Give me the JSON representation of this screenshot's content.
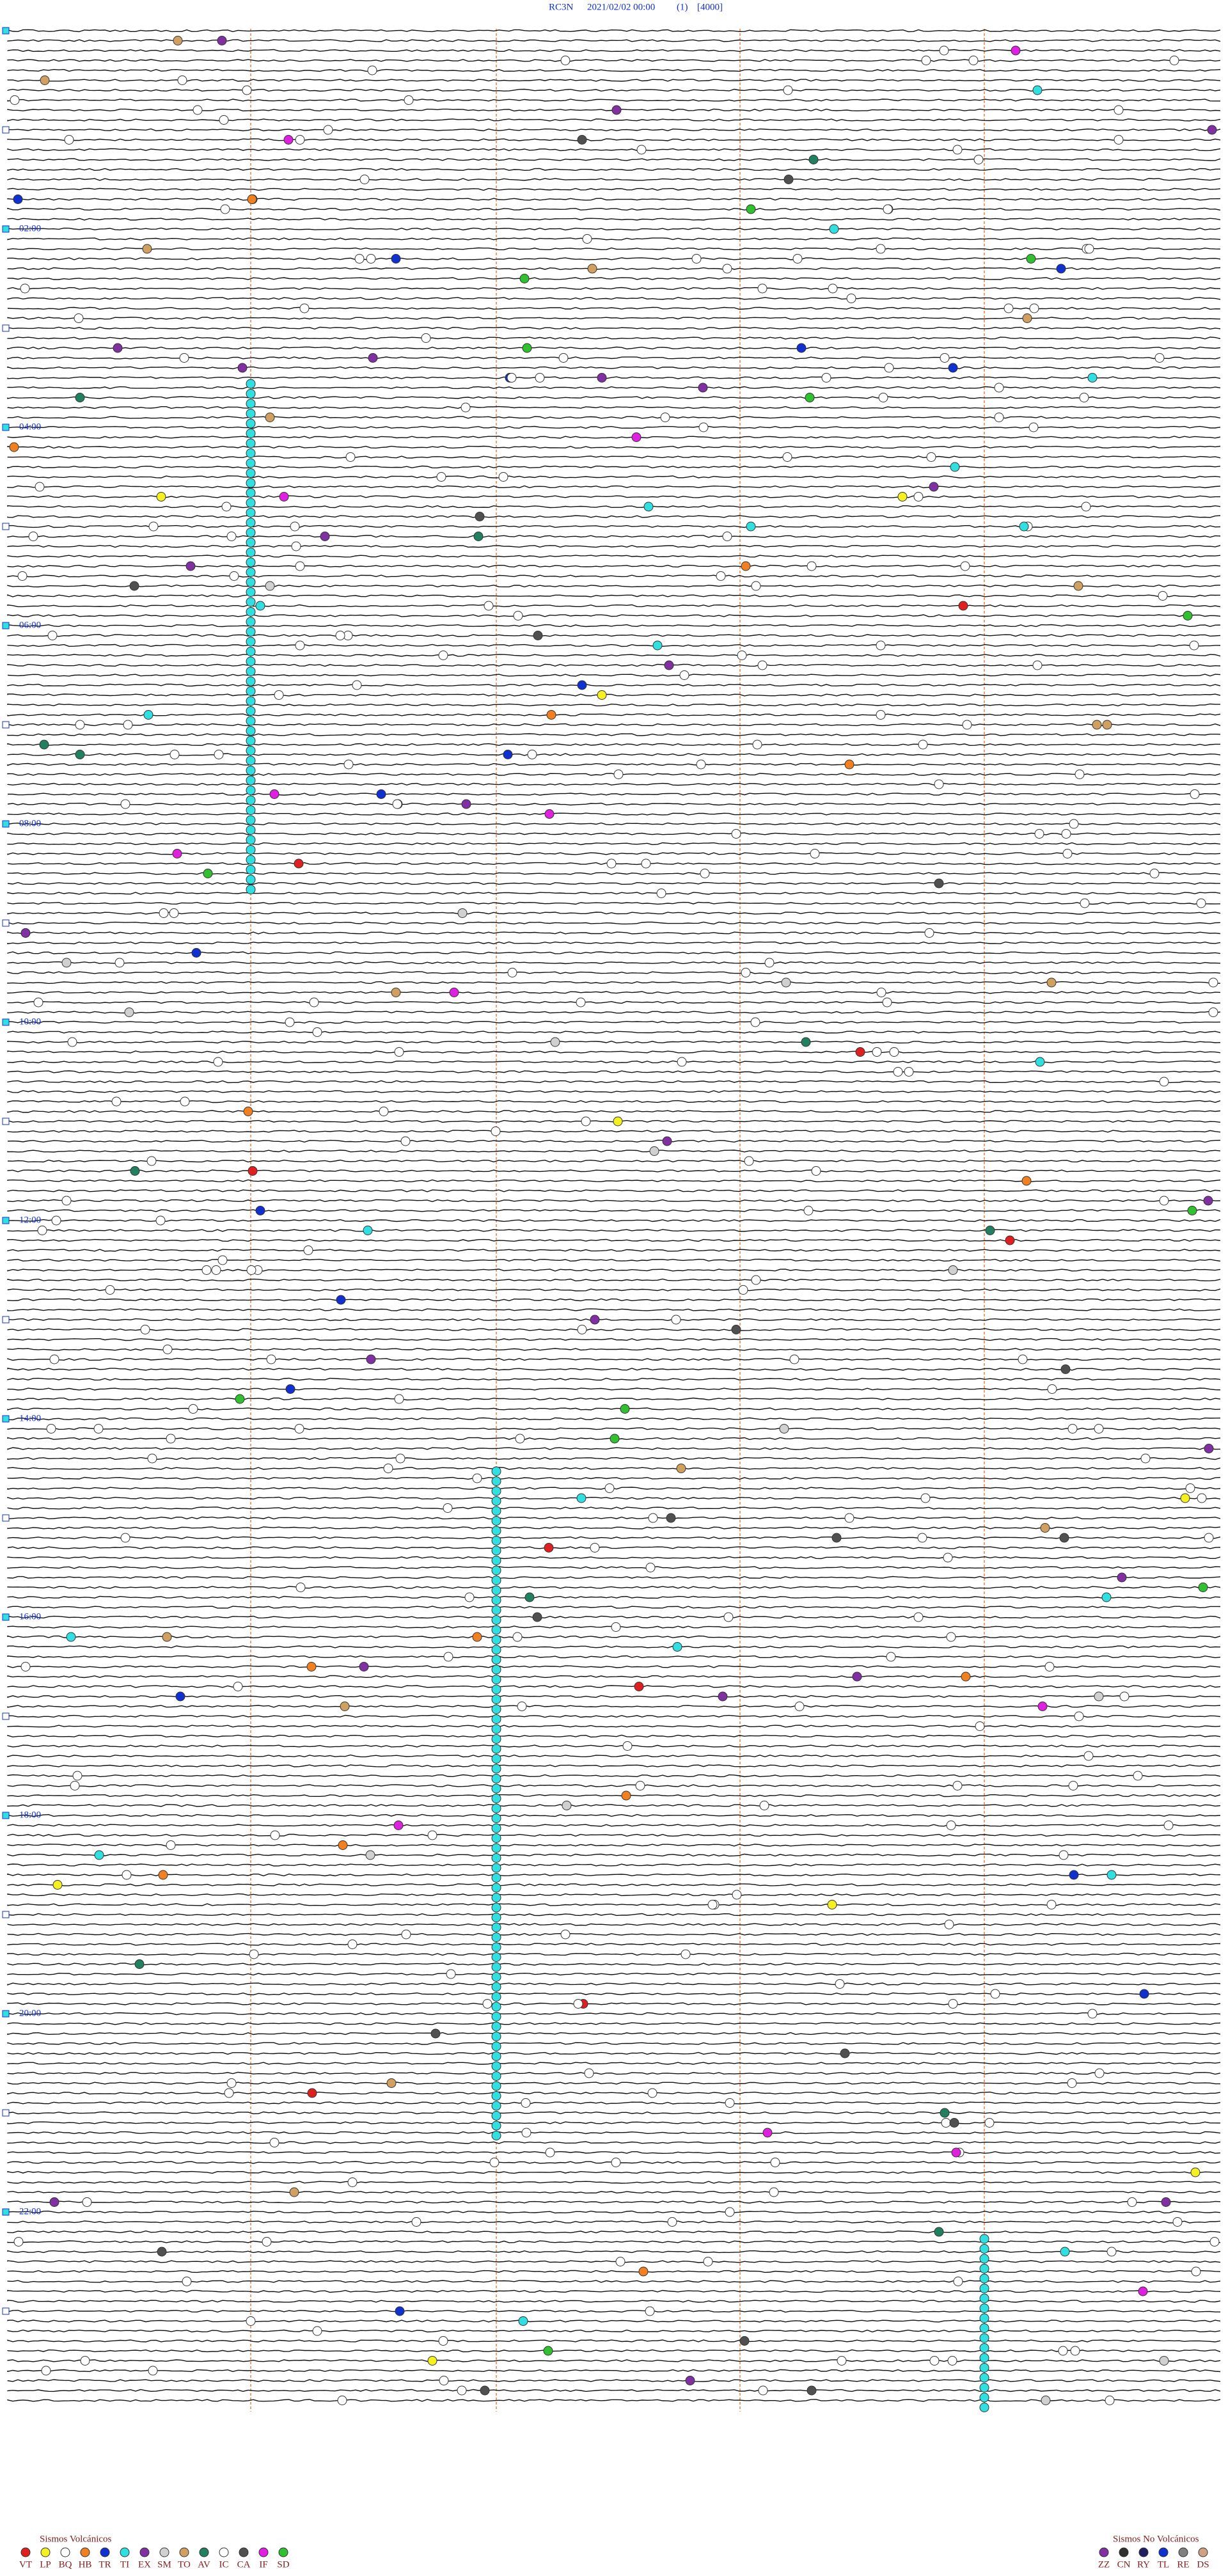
{
  "header": {
    "station": "RC3N",
    "datetime": "2021/02/02 00:00",
    "channel": "(1)",
    "scale": "[4000]"
  },
  "time_labels": [
    "02:00",
    "04:00",
    "06:00",
    "08:00",
    "10:00",
    "12:00",
    "14:00",
    "16:00",
    "18:00",
    "20:00",
    "22:00"
  ],
  "legend_volcanic": {
    "title": "Sismos Volcánicos",
    "items": [
      {
        "code": "VT",
        "color": "#e02020"
      },
      {
        "code": "LP",
        "color": "#f5f020"
      },
      {
        "code": "BQ",
        "color": "#ffffff"
      },
      {
        "code": "HB",
        "color": "#f08020"
      },
      {
        "code": "TR",
        "color": "#1030d0"
      },
      {
        "code": "TI",
        "color": "#30e0e0"
      },
      {
        "code": "EX",
        "color": "#8030a0"
      },
      {
        "code": "SM",
        "color": "#d0d0d0"
      },
      {
        "code": "TO",
        "color": "#d0a060"
      },
      {
        "code": "AV",
        "color": "#208060"
      },
      {
        "code": "IC",
        "color": "#ffffff"
      },
      {
        "code": "CA",
        "color": "#505050"
      },
      {
        "code": "IF",
        "color": "#e020e0"
      },
      {
        "code": "SD",
        "color": "#30c030"
      }
    ]
  },
  "legend_non_volcanic": {
    "title": "Sismos No Volcánicos",
    "items": [
      {
        "code": "ZZ",
        "color": "#8030a0"
      },
      {
        "code": "CN",
        "color": "#303030"
      },
      {
        "code": "RY",
        "color": "#202060"
      },
      {
        "code": "TL",
        "color": "#1030d0"
      },
      {
        "code": "RE",
        "color": "#808080"
      },
      {
        "code": "DS",
        "color": "#d0a080"
      }
    ]
  }
}
